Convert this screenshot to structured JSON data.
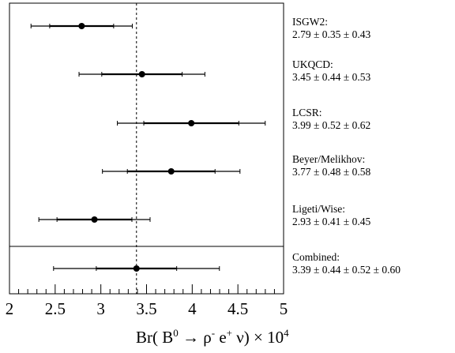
{
  "chart_data": {
    "type": "scatter",
    "title": "",
    "xlabel_parts": {
      "prefix": "Br( B",
      "b_sup": "0",
      "arrow": " → ρ",
      "rho_sup": "-",
      "e": " e",
      "e_sup": "+",
      "suffix": " ν) × 10",
      "exp_sup": "4"
    },
    "xlim": [
      2,
      5
    ],
    "ticks": [
      "2",
      "2.5",
      "3",
      "3.5",
      "4",
      "4.5",
      "5"
    ],
    "tick_values": [
      2,
      2.5,
      3,
      3.5,
      4,
      4.5,
      5
    ],
    "reference_value": 3.39,
    "measurements": [
      {
        "name": "ISGW2:",
        "value_text": "2.79 ± 0.35 ± 0.43",
        "value": 2.79,
        "stat": 0.35,
        "syst": 0.43
      },
      {
        "name": "UKQCD:",
        "value_text": "3.45 ± 0.44 ± 0.53",
        "value": 3.45,
        "stat": 0.44,
        "syst": 0.53
      },
      {
        "name": "LCSR:",
        "value_text": "3.99 ± 0.52 ± 0.62",
        "value": 3.99,
        "stat": 0.52,
        "syst": 0.62
      },
      {
        "name": "Beyer/Melikhov:",
        "value_text": "3.77 ± 0.48 ± 0.58",
        "value": 3.77,
        "stat": 0.48,
        "syst": 0.58
      },
      {
        "name": "Ligeti/Wise:",
        "value_text": "2.93 ± 0.41 ± 0.45",
        "value": 2.93,
        "stat": 0.41,
        "syst": 0.45
      },
      {
        "name": "Combined:",
        "value_text": "3.39 ± 0.44 ± 0.52 ± 0.60",
        "value": 3.39,
        "stat": 0.44,
        "syst": 0.52,
        "extra": 0.6
      }
    ]
  }
}
